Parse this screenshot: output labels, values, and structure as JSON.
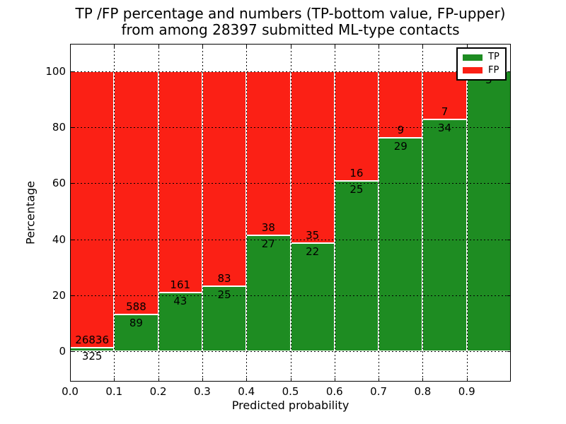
{
  "chart_data": {
    "type": "bar",
    "stacked": true,
    "normalized_to_percent": true,
    "title_line1": "TP /FP percentage and numbers (TP-bottom value, FP-upper)",
    "title_line2": "from among 28397 submitted ML-type contacts",
    "title": "TP /FP percentage and numbers (TP-bottom value, FP-upper) from among 28397 submitted ML-type contacts",
    "total_contacts": 28397,
    "xlabel": "Predicted probability",
    "ylabel": "Percentage",
    "x_tick_labels": [
      "0.0",
      "0.1",
      "0.2",
      "0.3",
      "0.4",
      "0.5",
      "0.6",
      "0.7",
      "0.8",
      "0.9"
    ],
    "y_tick_labels": [
      "0",
      "20",
      "40",
      "60",
      "80",
      "100"
    ],
    "y_tick_values": [
      0,
      20,
      40,
      60,
      80,
      100
    ],
    "xlim": [
      0.0,
      1.0
    ],
    "ylim": [
      -11,
      110
    ],
    "bin_width": 0.1,
    "bin_starts": [
      0.0,
      0.1,
      0.2,
      0.3,
      0.4,
      0.5,
      0.6,
      0.7,
      0.8,
      0.9
    ],
    "series": [
      {
        "name": "TP",
        "color": "#1e8c22",
        "values": [
          325,
          89,
          43,
          25,
          27,
          22,
          25,
          29,
          34,
          5
        ]
      },
      {
        "name": "FP",
        "color": "#fb2015",
        "values": [
          26836,
          588,
          161,
          83,
          38,
          35,
          16,
          9,
          7,
          0
        ]
      }
    ],
    "tp_percent": [
      1.2,
      13.1,
      21.1,
      23.1,
      41.5,
      38.6,
      61.0,
      76.3,
      82.9,
      100.0
    ],
    "legend": {
      "position": "upper right",
      "entries": [
        "TP",
        "FP"
      ]
    },
    "grid": "dotted"
  },
  "colors": {
    "tp_green": "#1e8c22",
    "fp_red": "#fb2015",
    "text": "#000000",
    "background": "#ffffff",
    "grid": "#000000"
  }
}
